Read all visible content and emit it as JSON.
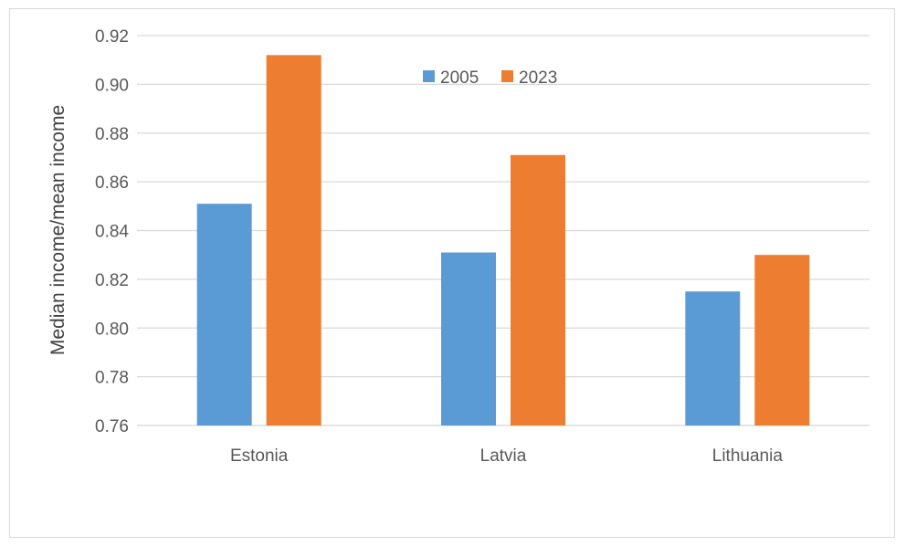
{
  "chart_data": {
    "type": "bar",
    "categories": [
      "Estonia",
      "Latvia",
      "Lithuania"
    ],
    "series": [
      {
        "name": "2005",
        "values": [
          0.851,
          0.831,
          0.815
        ],
        "color": "#5b9bd5"
      },
      {
        "name": "2023",
        "values": [
          0.912,
          0.871,
          0.83
        ],
        "color": "#ed7d31"
      }
    ],
    "title": "",
    "xlabel": "",
    "ylabel": "Median income/mean income",
    "ylim": [
      0.76,
      0.92
    ],
    "yticks": [
      "0.76",
      "0.78",
      "0.80",
      "0.82",
      "0.84",
      "0.86",
      "0.88",
      "0.90",
      "0.92"
    ],
    "grid": true,
    "legend_position": "top-center",
    "gridline_color": "#d9d9d9"
  }
}
